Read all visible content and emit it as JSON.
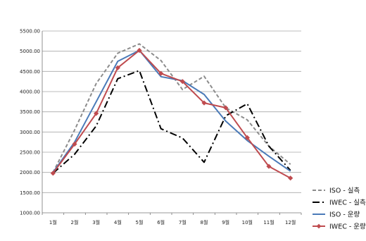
{
  "chart_data": {
    "type": "line",
    "title": "",
    "xlabel": "",
    "ylabel": "",
    "categories": [
      "1월",
      "2월",
      "3월",
      "4월",
      "5월",
      "6월",
      "7월",
      "8월",
      "9월",
      "10월",
      "11월",
      "12월"
    ],
    "ylim": [
      1000,
      5500
    ],
    "yticks": [
      "1000.00",
      "1500.00",
      "2000.00",
      "2500.00",
      "3000.00",
      "3500.00",
      "4000.00",
      "4500.00",
      "5000.00",
      "5500.00"
    ],
    "grid": true,
    "legend_position": "right",
    "series": [
      {
        "name": "ISO - 실측",
        "values": [
          2000,
          3050,
          4200,
          4950,
          5180,
          4770,
          4050,
          4380,
          3600,
          3300,
          2650,
          2200
        ],
        "color": "#8c8c8c",
        "dash": "5,3",
        "marker": "none"
      },
      {
        "name": "IWEC - 실측",
        "values": [
          1980,
          2450,
          3150,
          4320,
          4520,
          3080,
          2850,
          2250,
          3400,
          3700,
          2650,
          2050
        ],
        "color": "#000000",
        "dash": "10,4,2,4",
        "marker": "none"
      },
      {
        "name": "ISO - 운량",
        "values": [
          2000,
          2750,
          3750,
          4750,
          5020,
          4370,
          4270,
          3930,
          3270,
          2790,
          2400,
          2030
        ],
        "color": "#4a7ab8",
        "dash": "",
        "marker": "none"
      },
      {
        "name": "IWEC - 운량",
        "values": [
          1980,
          2700,
          3460,
          4590,
          5020,
          4450,
          4250,
          3720,
          3600,
          2860,
          2150,
          1860
        ],
        "color": "#bf4b4f",
        "dash": "",
        "marker": "diamond"
      }
    ]
  }
}
